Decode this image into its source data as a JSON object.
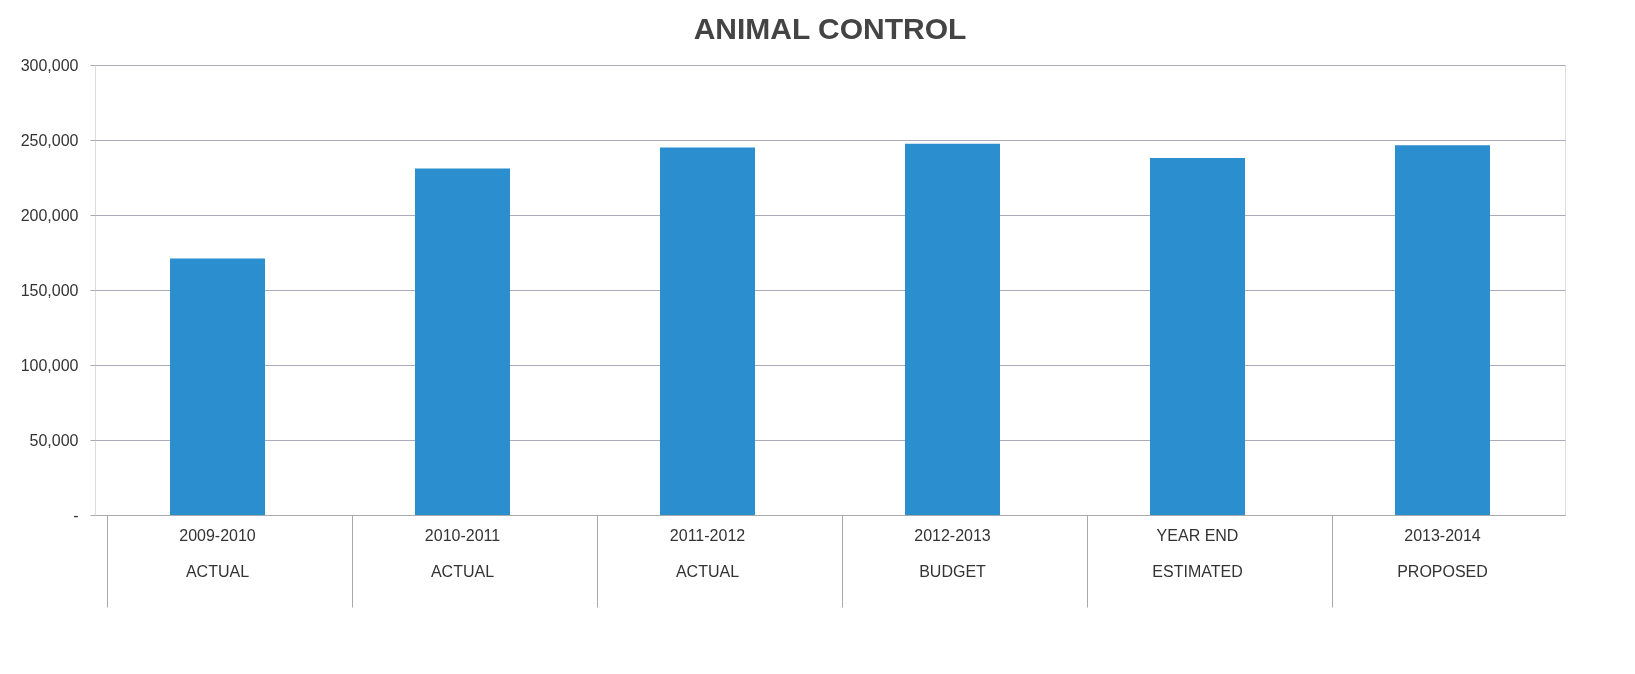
{
  "chart_data": {
    "type": "bar",
    "title": "ANIMAL CONTROL",
    "categories": [
      "2009-2010\nACTUAL",
      "2010-2011\nACTUAL",
      "2011-2012\nACTUAL",
      "2012-2013\nBUDGET",
      "YEAR END\nESTIMATED",
      "2013-2014\nPROPOSED"
    ],
    "values": [
      171000,
      231000,
      245000,
      247500,
      238000,
      246500
    ],
    "color": "#2b8fcf",
    "ylim": [
      0,
      300000
    ],
    "yticks": [
      {
        "value": 0,
        "label": "-"
      },
      {
        "value": 50000,
        "label": "50,000"
      },
      {
        "value": 100000,
        "label": "100,000"
      },
      {
        "value": 150000,
        "label": "150,000"
      },
      {
        "value": 200000,
        "label": "200,000"
      },
      {
        "value": 250000,
        "label": "250,000"
      },
      {
        "value": 300000,
        "label": "300,000"
      }
    ],
    "grid": "y"
  }
}
